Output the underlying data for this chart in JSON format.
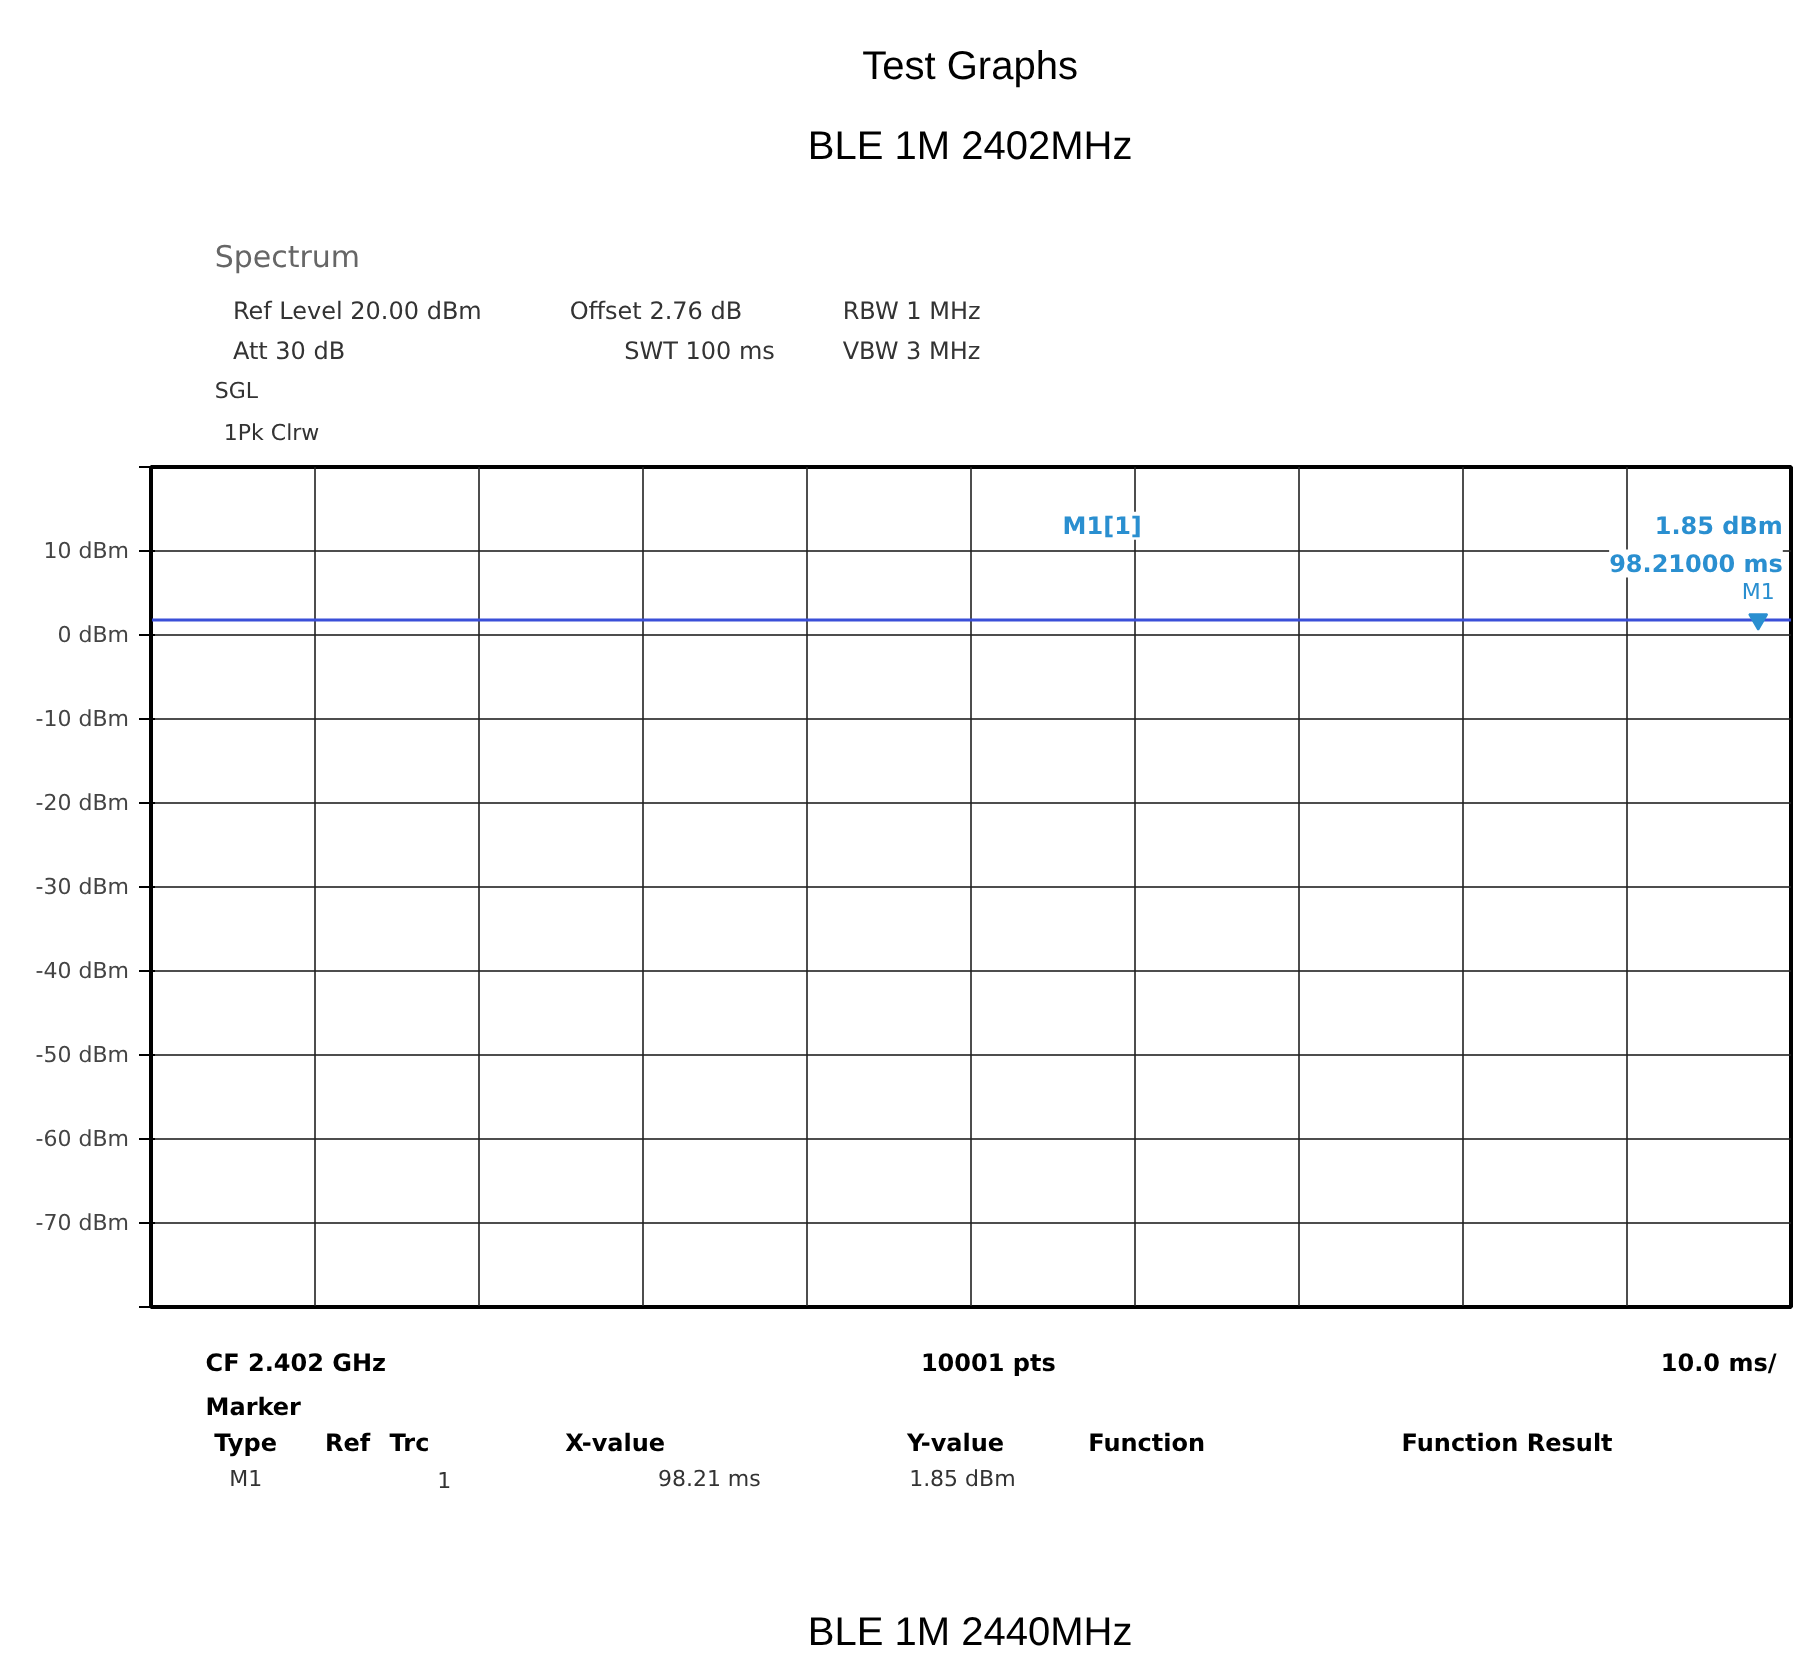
{
  "chart_data": {
    "type": "line",
    "categories": [
      null,
      null,
      null,
      null,
      null,
      null,
      null,
      null,
      null,
      null,
      null,
      null,
      null,
      null,
      null,
      null,
      null,
      null,
      null,
      null,
      null
    ],
    "series": [
      {
        "color": "#3a4fd8",
        "values": [
          1.8,
          1.8,
          1.8,
          1.8,
          1.8,
          1.8,
          1.8,
          1.8,
          1.8,
          1.8,
          1.8,
          1.8,
          1.8,
          1.8,
          1.8,
          1.8,
          1.8,
          1.8,
          1.8,
          1.8,
          1.8
        ]
      }
    ],
    "ylim": [
      -80,
      20
    ],
    "yticks": [
      {
        "value": -80,
        "label": null
      },
      {
        "value": -70,
        "label": "-70 dBm"
      },
      {
        "value": -60,
        "label": "-60 dBm"
      },
      {
        "value": -50,
        "label": "-50 dBm"
      },
      {
        "value": -40,
        "label": "-40 dBm"
      },
      {
        "value": -30,
        "label": "-30 dBm"
      },
      {
        "value": -20,
        "label": "-20 dBm"
      },
      {
        "value": -10,
        "label": "-10 dBm"
      },
      {
        "value": 0,
        "label": "0 dBm"
      },
      {
        "value": 10,
        "label": "10 dBm"
      },
      {
        "value": 20,
        "label": null
      }
    ],
    "tick_labels": "y",
    "grid": true,
    "marker": "none",
    "line_style": "solid",
    "annotations": [
      "Test Graphs",
      "BLE 1M 2402MHz",
      "Spectrum",
      "Ref Level 20.00 dBm",
      "Offset 2.76 dB",
      "RBW 1 MHz",
      "Att 30 dB",
      "SWT 100 ms",
      "VBW 3 MHz",
      "SGL",
      "1Pk Clrw",
      "M1[1]",
      "1.85 dBm",
      "98.21000 ms",
      "CF 2.402 GHz",
      "10001 pts",
      "10.0 ms/",
      "Marker",
      "Type",
      "Ref",
      "Trc",
      "X-value",
      "Y-value",
      "Function",
      "Function Result",
      "M1",
      "1",
      "98.21 ms",
      "1.85 dBm",
      "BLE 1M 2440MHz",
      {
        "text": "M1",
        "y": 1.85
      }
    ]
  }
}
